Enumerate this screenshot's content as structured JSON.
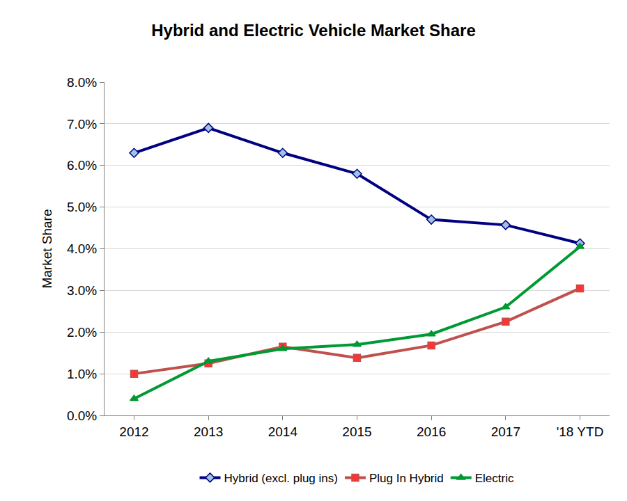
{
  "chart_data": {
    "type": "line",
    "title": "Hybrid and Electric Vehicle Market Share",
    "y_label": "Market Share",
    "categories": [
      "2012",
      "2013",
      "2014",
      "2015",
      "2016",
      "2017",
      "'18 YTD"
    ],
    "series": [
      {
        "name": "Hybrid (excl. plug ins)",
        "color": "#000080",
        "marker": "diamond",
        "values": [
          6.3,
          6.9,
          6.3,
          5.8,
          4.7,
          4.57,
          4.13
        ]
      },
      {
        "name": "Plug In Hybrid",
        "color": "#C0504D",
        "marker": "square",
        "values": [
          1.0,
          1.25,
          1.65,
          1.38,
          1.68,
          2.25,
          3.05
        ]
      },
      {
        "name": "Electric",
        "color": "#009933",
        "marker": "triangle",
        "values": [
          0.4,
          1.3,
          1.6,
          1.7,
          1.95,
          2.6,
          4.05
        ]
      }
    ],
    "ylim": [
      0,
      8
    ],
    "yticks": [
      {
        "value": 0,
        "label": "0.0%"
      },
      {
        "value": 1,
        "label": "1.0%"
      },
      {
        "value": 2,
        "label": "2.0%"
      },
      {
        "value": 3,
        "label": "3.0%"
      },
      {
        "value": 4,
        "label": "4.0%"
      },
      {
        "value": 5,
        "label": "5.0%"
      },
      {
        "value": 6,
        "label": "6.0%"
      },
      {
        "value": 7,
        "label": "7.0%"
      },
      {
        "value": 8,
        "label": "8.0%"
      }
    ],
    "grid": true,
    "legend": "bottom"
  }
}
